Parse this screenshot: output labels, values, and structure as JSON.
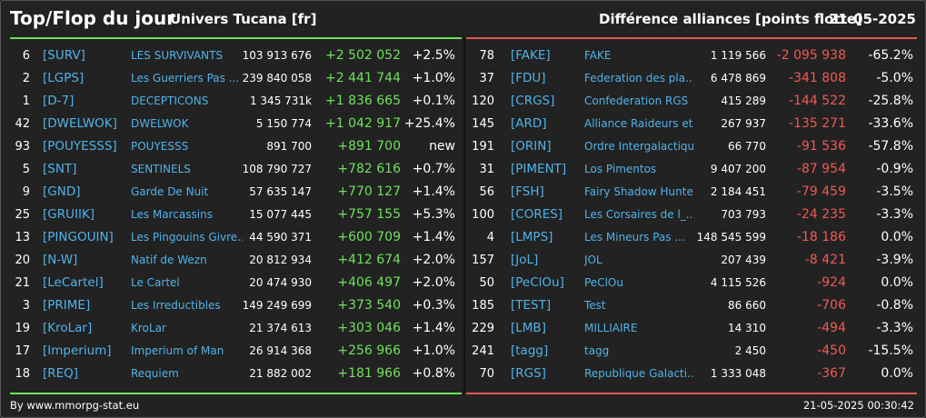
{
  "header": {
    "title": "Top/Flop du jour",
    "universe": "Univers Tucana [fr]",
    "metric": "Différence alliances [points flotte]",
    "date": "21-05-2025"
  },
  "colors": {
    "positive": "#6fe05c",
    "negative": "#f05a52",
    "tag": "#4fb3ea",
    "background": "#222222"
  },
  "top": [
    {
      "rank": "6",
      "tag": "[SURV]",
      "name": "LES SURVIVANTS",
      "points": "103 913 676",
      "diff": "+2 502 052",
      "pct": "+2.5%"
    },
    {
      "rank": "2",
      "tag": "[LGPS]",
      "name": "Les Guerriers Pas ...",
      "points": "239 840 058",
      "diff": "+2 441 744",
      "pct": "+1.0%"
    },
    {
      "rank": "1",
      "tag": "[D-7]",
      "name": "DECEPTICONS",
      "points": "1 345 731k",
      "diff": "+1 836 665",
      "pct": "+0.1%"
    },
    {
      "rank": "42",
      "tag": "[DWELWOK]",
      "name": "DWELWOK",
      "points": "5 150 774",
      "diff": "+1 042 917",
      "pct": "+25.4%"
    },
    {
      "rank": "93",
      "tag": "[POUYESSS]",
      "name": "POUYESSS",
      "points": "891 700",
      "diff": "+891 700",
      "pct": "new"
    },
    {
      "rank": "5",
      "tag": "[SNT]",
      "name": "SENTINELS",
      "points": "108 790 727",
      "diff": "+782 616",
      "pct": "+0.7%"
    },
    {
      "rank": "9",
      "tag": "[GND]",
      "name": "Garde De Nuit",
      "points": "57 635 147",
      "diff": "+770 127",
      "pct": "+1.4%"
    },
    {
      "rank": "25",
      "tag": "[GRUIIK]",
      "name": "Les Marcassins",
      "points": "15 077 445",
      "diff": "+757 155",
      "pct": "+5.3%"
    },
    {
      "rank": "13",
      "tag": "[PINGOUIN]",
      "name": "Les Pingouins Givre...",
      "points": "44 590 371",
      "diff": "+600 709",
      "pct": "+1.4%"
    },
    {
      "rank": "20",
      "tag": "[N-W]",
      "name": "Natif de Wezn",
      "points": "20 812 934",
      "diff": "+412 674",
      "pct": "+2.0%"
    },
    {
      "rank": "21",
      "tag": "[LeCartel]",
      "name": "Le Cartel",
      "points": "20 474 930",
      "diff": "+406 497",
      "pct": "+2.0%"
    },
    {
      "rank": "3",
      "tag": "[PRIME]",
      "name": "Les Irreductibles",
      "points": "149 249 699",
      "diff": "+373 540",
      "pct": "+0.3%"
    },
    {
      "rank": "19",
      "tag": "[KroLar]",
      "name": "KroLar",
      "points": "21 374 613",
      "diff": "+303 046",
      "pct": "+1.4%"
    },
    {
      "rank": "17",
      "tag": "[Imperium]",
      "name": "Imperium of Man",
      "points": "26 914 368",
      "diff": "+256 966",
      "pct": "+1.0%"
    },
    {
      "rank": "18",
      "tag": "[REQ]",
      "name": "Requiem",
      "points": "21 882 002",
      "diff": "+181 966",
      "pct": "+0.8%"
    }
  ],
  "flop": [
    {
      "rank": "78",
      "tag": "[FAKE]",
      "name": "FAKE",
      "points": "1 119 566",
      "diff": "-2 095 938",
      "pct": "-65.2%"
    },
    {
      "rank": "37",
      "tag": "[FDU]",
      "name": "Federation des pla...",
      "points": "6 478 869",
      "diff": "-341 808",
      "pct": "-5.0%"
    },
    {
      "rank": "120",
      "tag": "[CRGS]",
      "name": "Confederation RGS",
      "points": "415 289",
      "diff": "-144 522",
      "pct": "-25.8%"
    },
    {
      "rank": "145",
      "tag": "[ARD]",
      "name": "Alliance Raideurs et...",
      "points": "267 937",
      "diff": "-135 271",
      "pct": "-33.6%"
    },
    {
      "rank": "191",
      "tag": "[ORIN]",
      "name": "Ordre Intergalactiqu...",
      "points": "66 770",
      "diff": "-91 536",
      "pct": "-57.8%"
    },
    {
      "rank": "31",
      "tag": "[PIMENT]",
      "name": "Los Pimentos",
      "points": "9 407 200",
      "diff": "-87 954",
      "pct": "-0.9%"
    },
    {
      "rank": "56",
      "tag": "[FSH]",
      "name": "Fairy Shadow Hunte...",
      "points": "2 184 451",
      "diff": "-79 459",
      "pct": "-3.5%"
    },
    {
      "rank": "100",
      "tag": "[CORES]",
      "name": "Les Corsaires de l_...",
      "points": "703 793",
      "diff": "-24 235",
      "pct": "-3.3%"
    },
    {
      "rank": "4",
      "tag": "[LMPS]",
      "name": "Les Mineurs Pas ...",
      "points": "148 545 599",
      "diff": "-18 186",
      "pct": "0.0%"
    },
    {
      "rank": "157",
      "tag": "[JoL]",
      "name": "JOL",
      "points": "207 439",
      "diff": "-8 421",
      "pct": "-3.9%"
    },
    {
      "rank": "50",
      "tag": "[PeClOu]",
      "name": "PeClOu",
      "points": "4 115 526",
      "diff": "-924",
      "pct": "0.0%"
    },
    {
      "rank": "185",
      "tag": "[TEST]",
      "name": "Test",
      "points": "86 660",
      "diff": "-706",
      "pct": "-0.8%"
    },
    {
      "rank": "229",
      "tag": "[LMB]",
      "name": "MILLIAIRE",
      "points": "14 310",
      "diff": "-494",
      "pct": "-3.3%"
    },
    {
      "rank": "241",
      "tag": "[tagg]",
      "name": "tagg",
      "points": "2 450",
      "diff": "-450",
      "pct": "-15.5%"
    },
    {
      "rank": "70",
      "tag": "[RGS]",
      "name": "Republique Galacti...",
      "points": "1 333 048",
      "diff": "-367",
      "pct": "0.0%"
    }
  ],
  "footer": {
    "source": "By www.mmorpg-stat.eu",
    "timestamp": "21-05-2025 00:30:42"
  }
}
